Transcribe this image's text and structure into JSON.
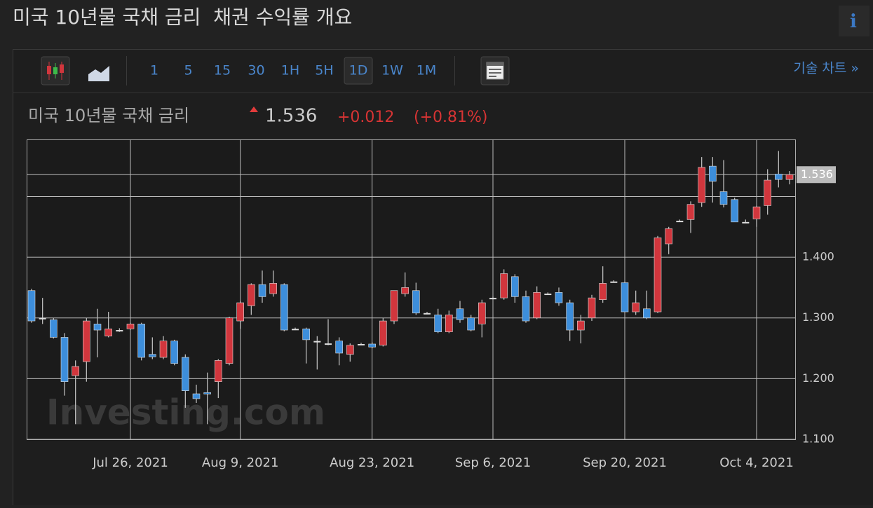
{
  "header": {
    "title": "미국 10년물 국채 금리  채권 수익률 개요",
    "info": "i"
  },
  "toolbar": {
    "intervals": [
      "1",
      "5",
      "15",
      "30",
      "1H",
      "5H",
      "1D",
      "1W",
      "1M"
    ],
    "active_interval": "1D",
    "technical_link": "기술 차트 »"
  },
  "quote": {
    "name": "미국 10년물 국채 금리",
    "price": "1.536",
    "change": "+0.012",
    "change_pct": "(+0.81%)"
  },
  "chart_data": {
    "type": "candlestick",
    "watermark": "Investing.com",
    "up_color": "#d1363d",
    "down_color": "#3d8edb",
    "ylim": [
      1.1,
      1.594
    ],
    "yticks": [
      {
        "value": 1.1,
        "label": "1.100"
      },
      {
        "value": 1.2,
        "label": "1.200"
      },
      {
        "value": 1.3,
        "label": "1.300"
      },
      {
        "value": 1.4,
        "label": "1.400"
      }
    ],
    "extra_grid": [
      1.5
    ],
    "categories": [
      null,
      null,
      null,
      null,
      null,
      null,
      null,
      null,
      null,
      "Jul 26, 2021",
      null,
      null,
      null,
      null,
      null,
      null,
      null,
      null,
      null,
      "Aug 9, 2021",
      null,
      null,
      null,
      null,
      null,
      null,
      null,
      null,
      null,
      null,
      null,
      "Aug 23, 2021",
      null,
      null,
      null,
      null,
      null,
      null,
      null,
      null,
      null,
      null,
      "Sep 6, 2021",
      null,
      null,
      null,
      null,
      null,
      null,
      null,
      null,
      null,
      null,
      null,
      "Sep 20, 2021",
      null,
      null,
      null,
      null,
      null,
      null,
      null,
      null,
      null,
      null,
      null,
      "Oct 4, 2021",
      null,
      null,
      null
    ],
    "open": [
      1.345,
      1.3,
      1.297,
      1.268,
      1.205,
      1.228,
      1.29,
      1.27,
      1.28,
      1.282,
      1.29,
      1.24,
      1.235,
      1.262,
      1.235,
      1.175,
      1.177,
      1.195,
      1.225,
      1.295,
      1.32,
      1.355,
      1.34,
      1.355,
      1.282,
      1.282,
      1.262,
      1.258,
      1.262,
      1.24,
      1.257,
      1.257,
      1.255,
      1.295,
      1.34,
      1.345,
      1.308,
      1.305,
      1.277,
      1.315,
      1.3,
      1.29,
      1.333,
      1.333,
      1.368,
      1.335,
      1.3,
      1.34,
      1.342,
      1.325,
      1.28,
      1.3,
      1.33,
      1.36,
      1.358,
      1.31,
      1.315,
      1.31,
      1.422,
      1.46,
      1.462,
      1.49,
      1.55,
      1.508,
      1.495,
      1.458,
      1.463,
      1.485,
      1.537,
      1.528
    ],
    "high": [
      1.348,
      1.333,
      1.3,
      1.275,
      1.23,
      1.3,
      1.315,
      1.31,
      1.283,
      1.292,
      1.292,
      1.268,
      1.27,
      1.264,
      1.24,
      1.19,
      1.21,
      1.232,
      1.302,
      1.328,
      1.357,
      1.378,
      1.378,
      1.357,
      1.284,
      1.284,
      1.27,
      1.298,
      1.268,
      1.258,
      1.259,
      1.26,
      1.3,
      1.345,
      1.375,
      1.358,
      1.31,
      1.315,
      1.312,
      1.328,
      1.305,
      1.33,
      1.335,
      1.38,
      1.372,
      1.345,
      1.352,
      1.342,
      1.35,
      1.33,
      1.305,
      1.338,
      1.385,
      1.362,
      1.36,
      1.345,
      1.345,
      1.435,
      1.45,
      1.462,
      1.492,
      1.565,
      1.565,
      1.56,
      1.498,
      1.462,
      1.485,
      1.545,
      1.575,
      1.542
    ],
    "low": [
      1.292,
      1.29,
      1.266,
      1.172,
      1.125,
      1.195,
      1.235,
      1.268,
      1.277,
      1.28,
      1.23,
      1.232,
      1.232,
      1.222,
      1.152,
      1.16,
      1.125,
      1.168,
      1.222,
      1.282,
      1.305,
      1.325,
      1.335,
      1.278,
      1.28,
      1.225,
      1.215,
      1.255,
      1.222,
      1.228,
      1.255,
      1.25,
      1.253,
      1.29,
      1.335,
      1.305,
      1.306,
      1.275,
      1.275,
      1.292,
      1.278,
      1.268,
      1.331,
      1.33,
      1.325,
      1.292,
      1.298,
      1.338,
      1.32,
      1.262,
      1.258,
      1.295,
      1.325,
      1.358,
      1.31,
      1.305,
      1.298,
      1.308,
      1.405,
      1.458,
      1.44,
      1.483,
      1.49,
      1.482,
      1.458,
      1.456,
      1.45,
      1.47,
      1.515,
      1.52
    ],
    "close": [
      1.295,
      1.3,
      1.268,
      1.195,
      1.22,
      1.295,
      1.28,
      1.282,
      1.28,
      1.29,
      1.235,
      1.236,
      1.262,
      1.225,
      1.18,
      1.167,
      1.175,
      1.23,
      1.3,
      1.325,
      1.355,
      1.335,
      1.357,
      1.28,
      1.282,
      1.264,
      1.262,
      1.258,
      1.242,
      1.255,
      1.257,
      1.252,
      1.295,
      1.345,
      1.35,
      1.308,
      1.308,
      1.277,
      1.305,
      1.297,
      1.28,
      1.325,
      1.333,
      1.373,
      1.335,
      1.295,
      1.342,
      1.34,
      1.325,
      1.28,
      1.295,
      1.333,
      1.357,
      1.36,
      1.31,
      1.325,
      1.3,
      1.432,
      1.447,
      1.46,
      1.487,
      1.548,
      1.525,
      1.487,
      1.458,
      1.458,
      1.483,
      1.527,
      1.528,
      1.536
    ]
  }
}
